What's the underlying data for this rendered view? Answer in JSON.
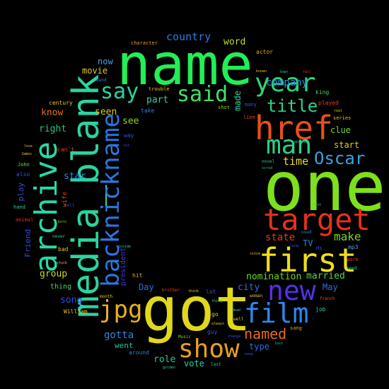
{
  "background": "#000000",
  "words": [
    {
      "text": "name",
      "color": "#22ee55"
    },
    {
      "text": "one",
      "color": "#7ee01c"
    },
    {
      "text": "got",
      "color": "#e0d81a"
    },
    {
      "text": "media_blank",
      "color": "#2ad4a0"
    },
    {
      "text": "href",
      "color": "#e8501c"
    },
    {
      "text": "archive",
      "color": "#28d8a8"
    },
    {
      "text": "first",
      "color": "#eede1e"
    },
    {
      "text": "target",
      "color": "#e8301c"
    },
    {
      "text": "backnickname",
      "color": "#2a78e0"
    },
    {
      "text": "film",
      "color": "#2a8af0"
    },
    {
      "text": "new",
      "color": "#5530e8"
    },
    {
      "text": "show",
      "color": "#e8a01e"
    },
    {
      "text": "man",
      "color": "#2ad48a"
    },
    {
      "text": "year",
      "color": "#2ad87a"
    },
    {
      "text": "jpg",
      "color": "#e8b020"
    },
    {
      "text": "said",
      "color": "#42e066"
    },
    {
      "text": "say",
      "color": "#2ad4a0"
    },
    {
      "text": "title",
      "color": "#2ad48a"
    },
    {
      "text": "Oscar",
      "color": "#3aa0e8"
    },
    {
      "text": "named",
      "color": "#e86a1c"
    },
    {
      "text": "make",
      "color": "#7ad81c"
    },
    {
      "text": "state",
      "color": "#e83a1c"
    },
    {
      "text": "time",
      "color": "#eede1e"
    },
    {
      "text": "nomination",
      "color": "#66d820"
    },
    {
      "text": "married",
      "color": "#4ad850"
    },
    {
      "text": "city",
      "color": "#2a70e0"
    },
    {
      "text": "country",
      "color": "#2a7ae0"
    },
    {
      "text": "word",
      "color": "#b8e01a"
    },
    {
      "text": "company",
      "color": "#2a90d8"
    },
    {
      "text": "made",
      "color": "#2ad4a0"
    },
    {
      "text": "seen",
      "color": "#e0c81a"
    },
    {
      "text": "see",
      "color": "#90d81c"
    },
    {
      "text": "part",
      "color": "#2ad4a0"
    },
    {
      "text": "now",
      "color": "#3aa0e8"
    },
    {
      "text": "movie",
      "color": "#e8c81a"
    },
    {
      "text": "know",
      "color": "#e86a1c"
    },
    {
      "text": "right",
      "color": "#22c880"
    },
    {
      "text": "group",
      "color": "#c8d81a"
    },
    {
      "text": "song",
      "color": "#2a50e0"
    },
    {
      "text": "gotta",
      "color": "#2a8ae0"
    },
    {
      "text": "went",
      "color": "#22c8a0"
    },
    {
      "text": "role",
      "color": "#22c8a0"
    },
    {
      "text": "vote",
      "color": "#2ad4a0"
    },
    {
      "text": "type",
      "color": "#2a70e0"
    },
    {
      "text": "Day",
      "color": "#2a70e0"
    },
    {
      "text": "May",
      "color": "#2a70e0"
    },
    {
      "text": "clue",
      "color": "#7ad81c"
    },
    {
      "text": "start",
      "color": "#e8c81a"
    },
    {
      "text": "star",
      "color": "#2a8ae0"
    },
    {
      "text": "TV",
      "color": "#2a80e0"
    },
    {
      "text": "play",
      "color": "#3050e0"
    },
    {
      "text": "Friend",
      "color": "#2a50e0"
    },
    {
      "text": "president",
      "color": "#3a40e0"
    },
    {
      "text": "thing",
      "color": "#42d866"
    },
    {
      "text": "mp3",
      "color": "#5aa0e8"
    },
    {
      "text": "actor",
      "color": "#e8a81a"
    },
    {
      "text": "character",
      "color": "#e8a01e"
    },
    {
      "text": "trouble",
      "color": "#e8c81a"
    },
    {
      "text": "century",
      "color": "#e8c81a"
    },
    {
      "text": "band",
      "color": "#3a80e8"
    },
    {
      "text": "king",
      "color": "#42d866"
    },
    {
      "text": "played",
      "color": "#e83a1c"
    },
    {
      "text": "series",
      "color": "#e8c81a"
    },
    {
      "text": "episode",
      "color": "#2ad4a0"
    },
    {
      "text": "line",
      "color": "#e84a1c"
    },
    {
      "text": "many",
      "color": "#3a50e0"
    },
    {
      "text": "take",
      "color": "#2a80e0"
    },
    {
      "text": "shot",
      "color": "#8ad81c"
    },
    {
      "text": "way",
      "color": "#3a50e0"
    },
    {
      "text": "John",
      "color": "#8ad81c"
    },
    {
      "text": "also",
      "color": "#3a50e0"
    },
    {
      "text": "hand",
      "color": "#2ad4a0"
    },
    {
      "text": "animal",
      "color": "#e8301c"
    },
    {
      "text": "bad",
      "color": "#e8c81a"
    },
    {
      "text": "wife",
      "color": "#e83a1c"
    },
    {
      "text": "tell",
      "color": "#3a50e0"
    },
    {
      "text": "can't",
      "color": "#e84a1c"
    },
    {
      "text": "hit",
      "color": "#e8a81a"
    },
    {
      "text": "William",
      "color": "#e8c81a"
    },
    {
      "text": "month",
      "color": "#e8c81a"
    },
    {
      "text": "brother",
      "color": "#e83a1c"
    },
    {
      "text": "lot",
      "color": "#3a50e0"
    },
    {
      "text": "guy",
      "color": "#3a50e0"
    },
    {
      "text": "go",
      "color": "#e8c81a"
    },
    {
      "text": "woman",
      "color": "#e8c81a"
    },
    {
      "text": "job",
      "color": "#2ad4a0"
    },
    {
      "text": "sang",
      "color": "#e8a81a"
    },
    {
      "text": "work",
      "color": "#e83a1c"
    },
    {
      "text": "around",
      "color": "#2a80e0"
    },
    {
      "text": "last",
      "color": "#2ad4a0"
    },
    {
      "text": "novel",
      "color": "#2ad4a0"
    },
    {
      "text": "used",
      "color": "#2a80e0"
    },
    {
      "text": "french",
      "color": "#e84a1c"
    },
    {
      "text": "Hs",
      "color": "#3a50e0"
    },
    {
      "text": "need",
      "color": "#2ad4a0"
    },
    {
      "text": "well",
      "color": "#e8c81a"
    },
    {
      "text": "long",
      "color": "#3a50e0"
    },
    {
      "text": "best",
      "color": "#2ad4a0"
    },
    {
      "text": "scrid",
      "color": "#2ad4a0"
    },
    {
      "text": "known",
      "color": "#e8c81a"
    },
    {
      "text": "never",
      "color": "#2ad4a0"
    },
    {
      "text": "born",
      "color": "#8ad81c"
    },
    {
      "text": "stuck",
      "color": "#e8c81a"
    },
    {
      "text": "love",
      "color": "#e8c81a"
    },
    {
      "text": "James",
      "color": "#e8c81a"
    },
    {
      "text": "inside",
      "color": "#2ad4a0"
    },
    {
      "text": "think",
      "color": "#e8c81a"
    },
    {
      "text": "dead",
      "color": "#2ad4a0"
    },
    {
      "text": "since",
      "color": "#e8c81a"
    },
    {
      "text": "fall",
      "color": "#e83a1c"
    },
    {
      "text": "town",
      "color": "#2ad4a0"
    },
    {
      "text": "real",
      "color": "#e8c81a"
    },
    {
      "text": "set",
      "color": "#3a50e0"
    },
    {
      "text": "Music",
      "color": "#8ad81c"
    },
    {
      "text": "thing",
      "color": "#2ad4a0"
    },
    {
      "text": "always",
      "color": "#e8c81a"
    },
    {
      "text": "change",
      "color": "#3a50e0"
    },
    {
      "text": "lost",
      "color": "#2ad4a0"
    },
    {
      "text": "keep",
      "color": "#3a50e0"
    },
    {
      "text": "golden",
      "color": "#2ad4a0"
    }
  ]
}
